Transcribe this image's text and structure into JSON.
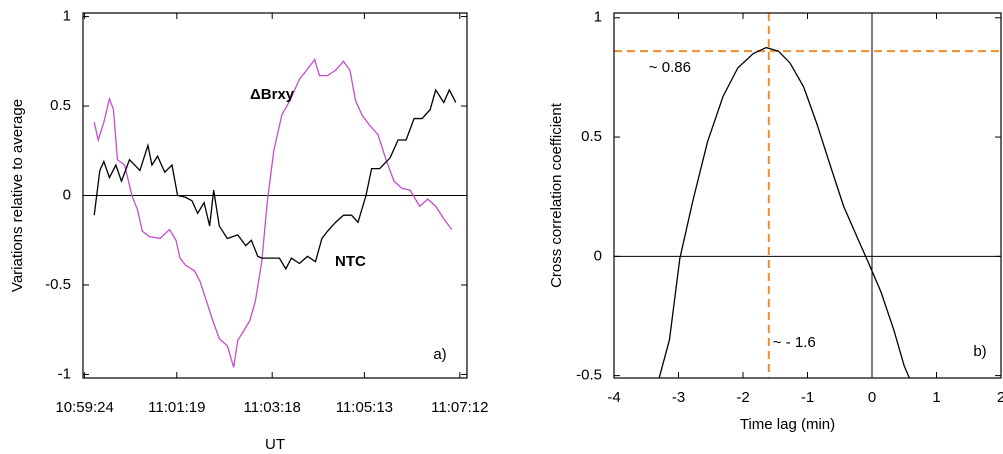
{
  "chart_data": [
    {
      "type": "line",
      "y_label": "Variations relative to average",
      "x_label": "UT",
      "panel_label": "a)",
      "xlim": [
        39562,
        40041
      ],
      "xticks": [
        {
          "value": 39564,
          "label": "10:59:24"
        },
        {
          "value": 39679,
          "label": "11:01:19"
        },
        {
          "value": 39798,
          "label": "11:03:18"
        },
        {
          "value": 39913,
          "label": "11:05:13"
        },
        {
          "value": 40032,
          "label": "11:07:12"
        }
      ],
      "ylim": [
        -1.02,
        1.02
      ],
      "yticks": [
        1,
        0.5,
        0,
        -0.5,
        -1
      ],
      "hlines": [
        0
      ],
      "series": [
        {
          "name": "ΔBrxy",
          "color": "#c84bd2",
          "x": [
            39576,
            39581,
            39588,
            39595,
            39600,
            39605,
            39614,
            39623,
            39630,
            39636,
            39645,
            39658,
            39670,
            39678,
            39683,
            39690,
            39701,
            39708,
            39716,
            39724,
            39732,
            39742,
            39750,
            39755,
            39762,
            39770,
            39777,
            39785,
            39792,
            39800,
            39810,
            39820,
            39832,
            39841,
            39851,
            39857,
            39867,
            39877,
            39887,
            39895,
            39902,
            39910,
            39920,
            39930,
            39940,
            39950,
            39960,
            39970,
            39982,
            39992,
            40002,
            40012,
            40022
          ],
          "values": [
            0.41,
            0.31,
            0.41,
            0.54,
            0.48,
            0.2,
            0.17,
            0,
            -0.08,
            -0.2,
            -0.23,
            -0.24,
            -0.19,
            -0.25,
            -0.35,
            -0.39,
            -0.42,
            -0.48,
            -0.59,
            -0.7,
            -0.8,
            -0.84,
            -0.96,
            -0.81,
            -0.76,
            -0.7,
            -0.59,
            -0.37,
            -0.03,
            0.25,
            0.45,
            0.53,
            0.65,
            0.7,
            0.76,
            0.67,
            0.67,
            0.7,
            0.75,
            0.7,
            0.53,
            0.45,
            0.39,
            0.34,
            0.2,
            0.08,
            0.04,
            0.03,
            -0.06,
            -0.02,
            -0.06,
            -0.13,
            -0.19
          ]
        },
        {
          "name": "NTC",
          "color": "#000000",
          "x": [
            39576,
            39583,
            39588,
            39595,
            39603,
            39610,
            39620,
            39633,
            39643,
            39648,
            39655,
            39664,
            39673,
            39680,
            39690,
            39698,
            39705,
            39713,
            39720,
            39725,
            39732,
            39742,
            39755,
            39765,
            39772,
            39780,
            39785,
            39797,
            39807,
            39815,
            39822,
            39832,
            39842,
            39852,
            39860,
            39867,
            39877,
            39887,
            39897,
            39905,
            39915,
            39922,
            39932,
            39945,
            39955,
            39965,
            39975,
            39985,
            39995,
            40002,
            40012,
            40019,
            40027
          ],
          "values": [
            -0.11,
            0.14,
            0.19,
            0.1,
            0.17,
            0.08,
            0.2,
            0.14,
            0.28,
            0.17,
            0.22,
            0.13,
            0.17,
            0,
            -0.01,
            -0.03,
            -0.1,
            -0.04,
            -0.17,
            0.03,
            -0.17,
            -0.24,
            -0.22,
            -0.28,
            -0.25,
            -0.34,
            -0.35,
            -0.35,
            -0.35,
            -0.41,
            -0.35,
            -0.38,
            -0.34,
            -0.37,
            -0.24,
            -0.2,
            -0.15,
            -0.11,
            -0.11,
            -0.15,
            0,
            0.15,
            0.15,
            0.21,
            0.31,
            0.31,
            0.43,
            0.43,
            0.48,
            0.59,
            0.52,
            0.59,
            0.52
          ]
        }
      ]
    },
    {
      "type": "line",
      "y_label": "Cross correlation coefficient",
      "x_label": "Time lag (min)",
      "panel_label": "b)",
      "xlim": [
        -4,
        2
      ],
      "xticks": [
        -4,
        -3,
        -2,
        -1,
        0,
        1,
        2
      ],
      "ylim": [
        -0.51,
        1.02
      ],
      "yticks": [
        1,
        0.5,
        0,
        -0.5
      ],
      "hlines": [
        0
      ],
      "vlines": [
        0
      ],
      "ref_color": "#f28c28",
      "ref_x": -1.6,
      "ref_y": 0.86,
      "annotations": [
        "~ 0.86",
        "~ - 1.6"
      ],
      "series": [
        {
          "color": "#000000",
          "x": [
            -3.3,
            -3.14,
            -2.98,
            -2.78,
            -2.55,
            -2.31,
            -2.08,
            -1.84,
            -1.64,
            -1.45,
            -1.27,
            -1.06,
            -0.86,
            -0.64,
            -0.44,
            -0.23,
            -0.05,
            0.14,
            0.34,
            0.5,
            0.58
          ],
          "values": [
            -0.51,
            -0.35,
            -0.01,
            0.23,
            0.48,
            0.67,
            0.79,
            0.85,
            0.875,
            0.86,
            0.81,
            0.71,
            0.56,
            0.375,
            0.21,
            0.08,
            -0.03,
            -0.15,
            -0.31,
            -0.46,
            -0.51
          ]
        }
      ]
    }
  ]
}
